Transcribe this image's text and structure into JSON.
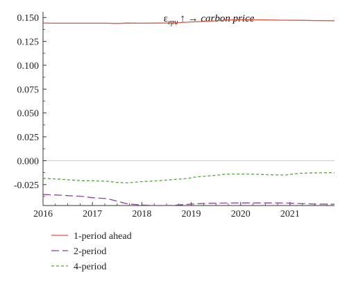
{
  "chart_data": {
    "type": "line",
    "title": {
      "symbol": "ε",
      "subscript": "epu",
      "suffix": "↑ → carbon price"
    },
    "xlabel": "",
    "ylabel": "",
    "xlim": [
      2016,
      2021.9
    ],
    "ylim": [
      -0.047,
      0.156
    ],
    "x_ticks": [
      "2016",
      "2017",
      "2018",
      "2019",
      "2020",
      "2021"
    ],
    "y_ticks": [
      "0.150",
      "0.125",
      "0.100",
      "0.075",
      "0.050",
      "0.025",
      "0.000",
      "-0.025"
    ],
    "grid": false,
    "legend_position": "bottom",
    "series": [
      {
        "name": "1-period ahead",
        "color": "#e0523a",
        "dash": "solid",
        "x": [
          2016.0,
          2016.2,
          2016.5,
          2016.8,
          2017.0,
          2017.3,
          2017.5,
          2017.7,
          2018.0,
          2018.3,
          2018.6,
          2018.9,
          2019.1,
          2019.4,
          2019.7,
          2020.0,
          2020.3,
          2020.6,
          2020.9,
          2021.2,
          2021.5,
          2021.9
        ],
        "values": [
          0.1443,
          0.1441,
          0.1441,
          0.1441,
          0.1441,
          0.1441,
          0.1438,
          0.1442,
          0.1441,
          0.1442,
          0.1443,
          0.1451,
          0.1455,
          0.1462,
          0.1474,
          0.1478,
          0.1476,
          0.1474,
          0.1472,
          0.1471,
          0.1468,
          0.1467
        ]
      },
      {
        "name": "2-period",
        "color": "#8a3fa0",
        "dash": "long",
        "x": [
          2016.0,
          2016.2,
          2016.5,
          2016.8,
          2017.0,
          2017.3,
          2017.5,
          2017.7,
          2018.0,
          2018.3,
          2018.6,
          2018.9,
          2019.1,
          2019.4,
          2019.7,
          2020.0,
          2020.3,
          2020.6,
          2020.9,
          2021.2,
          2021.5,
          2021.9
        ],
        "values": [
          -0.0355,
          -0.0358,
          -0.0366,
          -0.0375,
          -0.0388,
          -0.0398,
          -0.0425,
          -0.0452,
          -0.0465,
          -0.047,
          -0.0468,
          -0.0458,
          -0.0452,
          -0.0446,
          -0.0444,
          -0.0443,
          -0.0443,
          -0.0443,
          -0.0444,
          -0.0449,
          -0.0455,
          -0.0456
        ]
      },
      {
        "name": "4-period",
        "color": "#4aa832",
        "dash": "short",
        "x": [
          2016.0,
          2016.2,
          2016.5,
          2016.8,
          2017.0,
          2017.3,
          2017.5,
          2017.7,
          2018.0,
          2018.3,
          2018.6,
          2018.9,
          2019.1,
          2019.4,
          2019.7,
          2020.0,
          2020.3,
          2020.6,
          2020.9,
          2021.2,
          2021.5,
          2021.9
        ],
        "values": [
          -0.0185,
          -0.019,
          -0.02,
          -0.021,
          -0.021,
          -0.0216,
          -0.0228,
          -0.0233,
          -0.0219,
          -0.0212,
          -0.0199,
          -0.0187,
          -0.017,
          -0.0158,
          -0.0142,
          -0.014,
          -0.0142,
          -0.0148,
          -0.015,
          -0.0132,
          -0.0128,
          -0.0125
        ]
      }
    ]
  }
}
